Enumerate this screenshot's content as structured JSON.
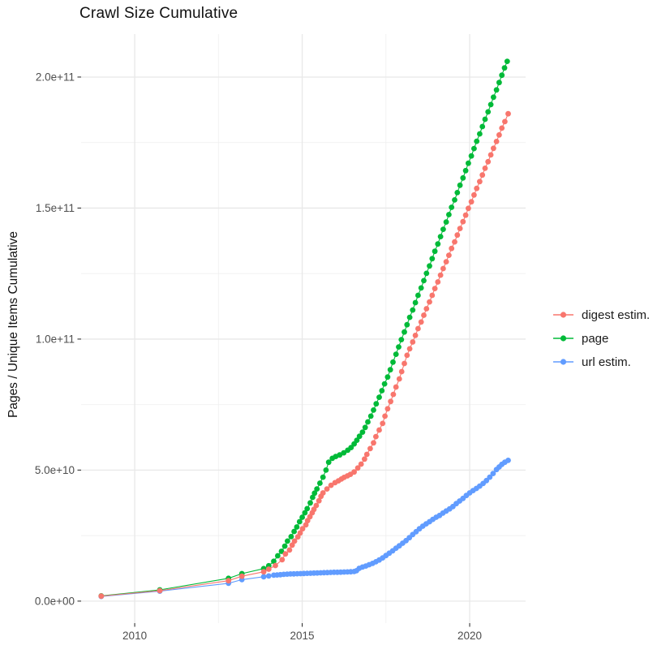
{
  "chart": {
    "title": "Crawl Size Cumulative",
    "ylabel": "Pages / Unique Items Cumulative"
  },
  "chart_data": {
    "type": "line",
    "title": "Crawl Size Cumulative",
    "xlabel": "",
    "ylabel": "Pages / Unique Items Cumulative",
    "grid": true,
    "legend_position": "right",
    "x_domain": [
      2008.4,
      2021.67
    ],
    "y_domain": [
      -8400000000.0,
      216400000000.0
    ],
    "x_ticks": [
      {
        "value": 2010,
        "label": "2010"
      },
      {
        "value": 2015,
        "label": "2015"
      },
      {
        "value": 2020,
        "label": "2020"
      }
    ],
    "y_ticks": [
      {
        "value": 0.0,
        "label": "0.0e+00"
      },
      {
        "value": 50000000000.0,
        "label": "5.0e+10"
      },
      {
        "value": 100000000000.0,
        "label": "1.0e+11"
      },
      {
        "value": 150000000000.0,
        "label": "1.5e+11"
      },
      {
        "value": 200000000000.0,
        "label": "2.0e+11"
      }
    ],
    "x_minor": [
      2012.5,
      2017.5
    ],
    "y_minor": [
      25000000000.0,
      75000000000.0,
      125000000000.0,
      175000000000.0
    ],
    "series": [
      {
        "name": "digest estim.",
        "color": "#F8766D",
        "points": [
          [
            2009.0,
            1900000000.0
          ],
          [
            2010.75,
            4000000000.0
          ],
          [
            2012.8,
            7800000000.0
          ],
          [
            2013.2,
            9500000000.0
          ],
          [
            2013.85,
            11200000000.0
          ],
          [
            2014.0,
            12200000000.0
          ],
          [
            2014.2,
            13600000000.0
          ],
          [
            2014.4,
            15800000000.0
          ],
          [
            2014.5,
            18000000000.0
          ],
          [
            2014.62,
            19500000000.0
          ],
          [
            2014.7,
            21400000000.0
          ],
          [
            2014.77,
            22900000000.0
          ],
          [
            2014.87,
            24500000000.0
          ],
          [
            2014.94,
            26000000000.0
          ],
          [
            2015.01,
            27600000000.0
          ],
          [
            2015.11,
            29100000000.0
          ],
          [
            2015.16,
            30700000000.0
          ],
          [
            2015.23,
            32200000000.0
          ],
          [
            2015.3,
            33700000000.0
          ],
          [
            2015.35,
            35000000000.0
          ],
          [
            2015.42,
            36500000000.0
          ],
          [
            2015.5,
            38300000000.0
          ],
          [
            2015.56,
            40000000000.0
          ],
          [
            2015.62,
            41300000000.0
          ],
          [
            2015.74,
            42800000000.0
          ],
          [
            2015.86,
            44200000000.0
          ],
          [
            2015.98,
            45200000000.0
          ],
          [
            2016.08,
            45900000000.0
          ],
          [
            2016.17,
            46600000000.0
          ],
          [
            2016.25,
            47200000000.0
          ],
          [
            2016.35,
            47800000000.0
          ],
          [
            2016.44,
            48400000000.0
          ],
          [
            2016.55,
            49300000000.0
          ],
          [
            2016.66,
            50800000000.0
          ],
          [
            2016.76,
            52300000000.0
          ],
          [
            2016.86,
            54200000000.0
          ],
          [
            2016.93,
            56000000000.0
          ],
          [
            2017.03,
            58200000000.0
          ],
          [
            2017.13,
            60400000000.0
          ],
          [
            2017.2,
            62800000000.0
          ],
          [
            2017.3,
            65300000000.0
          ],
          [
            2017.4,
            67800000000.0
          ],
          [
            2017.47,
            70600000000.0
          ],
          [
            2017.55,
            73400000000.0
          ],
          [
            2017.64,
            76200000000.0
          ],
          [
            2017.72,
            78900000000.0
          ],
          [
            2017.8,
            81700000000.0
          ],
          [
            2017.9,
            84800000000.0
          ],
          [
            2017.97,
            87600000000.0
          ],
          [
            2018.05,
            90700000000.0
          ],
          [
            2018.13,
            93800000000.0
          ],
          [
            2018.21,
            96300000000.0
          ],
          [
            2018.3,
            98900000000.0
          ],
          [
            2018.38,
            101400000000.0
          ],
          [
            2018.46,
            104000000000.0
          ],
          [
            2018.55,
            106500000000.0
          ],
          [
            2018.63,
            109100000000.0
          ],
          [
            2018.71,
            111600000000.0
          ],
          [
            2018.8,
            114200000000.0
          ],
          [
            2018.88,
            116700000000.0
          ],
          [
            2018.96,
            119300000000.0
          ],
          [
            2019.05,
            121800000000.0
          ],
          [
            2019.13,
            124400000000.0
          ],
          [
            2019.21,
            126900000000.0
          ],
          [
            2019.3,
            129500000000.0
          ],
          [
            2019.38,
            132000000000.0
          ],
          [
            2019.46,
            134600000000.0
          ],
          [
            2019.55,
            137100000000.0
          ],
          [
            2019.63,
            139700000000.0
          ],
          [
            2019.71,
            142200000000.0
          ],
          [
            2019.8,
            144800000000.0
          ],
          [
            2019.88,
            147300000000.0
          ],
          [
            2019.96,
            149900000000.0
          ],
          [
            2020.05,
            152400000000.0
          ],
          [
            2020.13,
            155000000000.0
          ],
          [
            2020.21,
            157500000000.0
          ],
          [
            2020.3,
            160100000000.0
          ],
          [
            2020.38,
            162600000000.0
          ],
          [
            2020.46,
            165200000000.0
          ],
          [
            2020.55,
            167700000000.0
          ],
          [
            2020.63,
            170300000000.0
          ],
          [
            2020.71,
            172800000000.0
          ],
          [
            2020.8,
            175400000000.0
          ],
          [
            2020.88,
            177900000000.0
          ],
          [
            2020.96,
            180500000000.0
          ],
          [
            2021.05,
            183000000000.0
          ],
          [
            2021.15,
            186000000000.0
          ]
        ]
      },
      {
        "name": "page",
        "color": "#00BA38",
        "points": [
          [
            2009.0,
            2000000000.0
          ],
          [
            2010.75,
            4300000000.0
          ],
          [
            2012.8,
            8700000000.0
          ],
          [
            2013.2,
            10500000000.0
          ],
          [
            2013.85,
            12400000000.0
          ],
          [
            2014.0,
            13500000000.0
          ],
          [
            2014.15,
            15200000000.0
          ],
          [
            2014.27,
            17300000000.0
          ],
          [
            2014.38,
            19000000000.0
          ],
          [
            2014.48,
            21000000000.0
          ],
          [
            2014.56,
            22900000000.0
          ],
          [
            2014.67,
            24600000000.0
          ],
          [
            2014.76,
            26600000000.0
          ],
          [
            2014.84,
            28300000000.0
          ],
          [
            2014.92,
            30300000000.0
          ],
          [
            2015.0,
            32000000000.0
          ],
          [
            2015.08,
            33700000000.0
          ],
          [
            2015.15,
            35300000000.0
          ],
          [
            2015.24,
            37500000000.0
          ],
          [
            2015.31,
            39600000000.0
          ],
          [
            2015.37,
            41200000000.0
          ],
          [
            2015.44,
            42800000000.0
          ],
          [
            2015.53,
            45000000000.0
          ],
          [
            2015.62,
            47300000000.0
          ],
          [
            2015.71,
            50000000000.0
          ],
          [
            2015.79,
            53000000000.0
          ],
          [
            2015.9,
            54500000000.0
          ],
          [
            2016.0,
            55200000000.0
          ],
          [
            2016.12,
            55800000000.0
          ],
          [
            2016.24,
            56600000000.0
          ],
          [
            2016.36,
            57600000000.0
          ],
          [
            2016.46,
            58600000000.0
          ],
          [
            2016.55,
            60000000000.0
          ],
          [
            2016.63,
            61400000000.0
          ],
          [
            2016.71,
            62900000000.0
          ],
          [
            2016.8,
            64500000000.0
          ],
          [
            2016.88,
            66300000000.0
          ],
          [
            2016.96,
            68400000000.0
          ],
          [
            2017.05,
            70600000000.0
          ],
          [
            2017.13,
            72900000000.0
          ],
          [
            2017.21,
            75300000000.0
          ],
          [
            2017.3,
            77800000000.0
          ],
          [
            2017.38,
            80300000000.0
          ],
          [
            2017.46,
            82900000000.0
          ],
          [
            2017.55,
            85500000000.0
          ],
          [
            2017.63,
            88300000000.0
          ],
          [
            2017.71,
            91200000000.0
          ],
          [
            2017.8,
            94200000000.0
          ],
          [
            2017.88,
            97000000000.0
          ],
          [
            2017.96,
            99800000000.0
          ],
          [
            2018.05,
            102700000000.0
          ],
          [
            2018.13,
            105500000000.0
          ],
          [
            2018.21,
            108300000000.0
          ],
          [
            2018.3,
            111100000000.0
          ],
          [
            2018.38,
            113900000000.0
          ],
          [
            2018.46,
            116700000000.0
          ],
          [
            2018.55,
            119500000000.0
          ],
          [
            2018.63,
            122300000000.0
          ],
          [
            2018.71,
            125100000000.0
          ],
          [
            2018.8,
            127900000000.0
          ],
          [
            2018.88,
            130700000000.0
          ],
          [
            2018.96,
            133500000000.0
          ],
          [
            2019.05,
            136300000000.0
          ],
          [
            2019.13,
            139100000000.0
          ],
          [
            2019.21,
            141900000000.0
          ],
          [
            2019.3,
            144700000000.0
          ],
          [
            2019.38,
            147500000000.0
          ],
          [
            2019.46,
            150300000000.0
          ],
          [
            2019.55,
            153100000000.0
          ],
          [
            2019.63,
            155900000000.0
          ],
          [
            2019.71,
            158700000000.0
          ],
          [
            2019.8,
            161500000000.0
          ],
          [
            2019.88,
            164300000000.0
          ],
          [
            2019.96,
            167100000000.0
          ],
          [
            2020.05,
            169900000000.0
          ],
          [
            2020.13,
            172700000000.0
          ],
          [
            2020.21,
            175500000000.0
          ],
          [
            2020.3,
            178300000000.0
          ],
          [
            2020.38,
            181100000000.0
          ],
          [
            2020.46,
            183900000000.0
          ],
          [
            2020.55,
            186700000000.0
          ],
          [
            2020.63,
            189500000000.0
          ],
          [
            2020.71,
            192300000000.0
          ],
          [
            2020.8,
            195100000000.0
          ],
          [
            2020.88,
            197900000000.0
          ],
          [
            2020.96,
            200700000000.0
          ],
          [
            2021.04,
            203500000000.0
          ],
          [
            2021.12,
            206000000000.0
          ]
        ]
      },
      {
        "name": "url estim.",
        "color": "#619CFF",
        "points": [
          [
            2009.0,
            1800000000.0
          ],
          [
            2010.75,
            3800000000.0
          ],
          [
            2012.8,
            6800000000.0
          ],
          [
            2013.2,
            8200000000.0
          ],
          [
            2013.85,
            9300000000.0
          ],
          [
            2014.0,
            9600000000.0
          ],
          [
            2014.15,
            9900000000.0
          ],
          [
            2014.25,
            10000000000.0
          ],
          [
            2014.35,
            10100000000.0
          ],
          [
            2014.45,
            10200000000.0
          ],
          [
            2014.55,
            10300000000.0
          ],
          [
            2014.65,
            10350000000.0
          ],
          [
            2014.75,
            10400000000.0
          ],
          [
            2014.85,
            10450000000.0
          ],
          [
            2014.95,
            10500000000.0
          ],
          [
            2015.05,
            10550000000.0
          ],
          [
            2015.15,
            10600000000.0
          ],
          [
            2015.25,
            10650000000.0
          ],
          [
            2015.35,
            10700000000.0
          ],
          [
            2015.45,
            10750000000.0
          ],
          [
            2015.55,
            10800000000.0
          ],
          [
            2015.65,
            10850000000.0
          ],
          [
            2015.75,
            10900000000.0
          ],
          [
            2015.85,
            10950000000.0
          ],
          [
            2015.95,
            11000000000.0
          ],
          [
            2016.05,
            11000000000.0
          ],
          [
            2016.15,
            11050000000.0
          ],
          [
            2016.25,
            11100000000.0
          ],
          [
            2016.35,
            11150000000.0
          ],
          [
            2016.45,
            11200000000.0
          ],
          [
            2016.55,
            11300000000.0
          ],
          [
            2016.62,
            11600000000.0
          ],
          [
            2016.7,
            12500000000.0
          ],
          [
            2016.8,
            13000000000.0
          ],
          [
            2016.9,
            13400000000.0
          ],
          [
            2017.0,
            13900000000.0
          ],
          [
            2017.1,
            14400000000.0
          ],
          [
            2017.2,
            15000000000.0
          ],
          [
            2017.3,
            15700000000.0
          ],
          [
            2017.4,
            16500000000.0
          ],
          [
            2017.5,
            17400000000.0
          ],
          [
            2017.6,
            18300000000.0
          ],
          [
            2017.7,
            19200000000.0
          ],
          [
            2017.8,
            20200000000.0
          ],
          [
            2017.9,
            21100000000.0
          ],
          [
            2018.0,
            22100000000.0
          ],
          [
            2018.1,
            23100000000.0
          ],
          [
            2018.2,
            24200000000.0
          ],
          [
            2018.3,
            25400000000.0
          ],
          [
            2018.4,
            26500000000.0
          ],
          [
            2018.5,
            27600000000.0
          ],
          [
            2018.6,
            28600000000.0
          ],
          [
            2018.7,
            29500000000.0
          ],
          [
            2018.8,
            30300000000.0
          ],
          [
            2018.9,
            31200000000.0
          ],
          [
            2019.0,
            32000000000.0
          ],
          [
            2019.1,
            32700000000.0
          ],
          [
            2019.2,
            33600000000.0
          ],
          [
            2019.3,
            34400000000.0
          ],
          [
            2019.4,
            35200000000.0
          ],
          [
            2019.5,
            36100000000.0
          ],
          [
            2019.6,
            37200000000.0
          ],
          [
            2019.7,
            38200000000.0
          ],
          [
            2019.8,
            39200000000.0
          ],
          [
            2019.9,
            40300000000.0
          ],
          [
            2020.0,
            41300000000.0
          ],
          [
            2020.1,
            42200000000.0
          ],
          [
            2020.2,
            43000000000.0
          ],
          [
            2020.3,
            43900000000.0
          ],
          [
            2020.4,
            44900000000.0
          ],
          [
            2020.5,
            46000000000.0
          ],
          [
            2020.6,
            47300000000.0
          ],
          [
            2020.7,
            48700000000.0
          ],
          [
            2020.8,
            50200000000.0
          ],
          [
            2020.88,
            51200000000.0
          ],
          [
            2020.96,
            52200000000.0
          ],
          [
            2021.05,
            53000000000.0
          ],
          [
            2021.15,
            53700000000.0
          ]
        ]
      }
    ]
  }
}
